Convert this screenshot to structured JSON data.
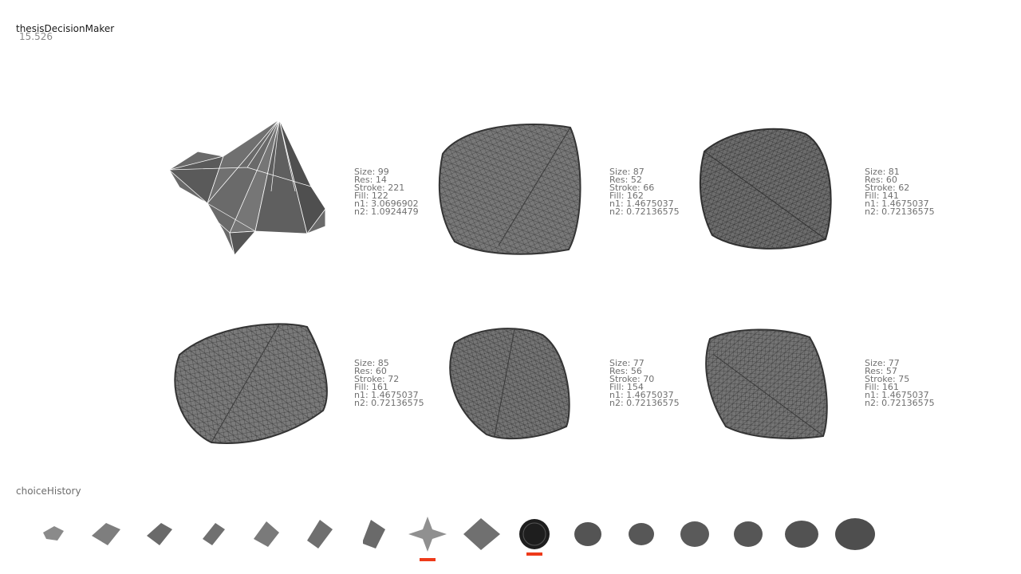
{
  "app": {
    "title": "thesisDecisionMaker",
    "timer": "15.526"
  },
  "candidates": [
    {
      "params": [
        "Size: 99",
        "Res: 14",
        "Stroke: 221",
        "Fill: 122",
        "n1: 3.0696902",
        "n2: 1.0924479"
      ]
    },
    {
      "params": [
        "Size: 87",
        "Res: 52",
        "Stroke: 66",
        "Fill: 162",
        "n1: 1.4675037",
        "n2: 0.72136575"
      ]
    },
    {
      "params": [
        "Size: 81",
        "Res: 60",
        "Stroke: 62",
        "Fill: 141",
        "n1: 1.4675037",
        "n2: 0.72136575"
      ]
    },
    {
      "params": [
        "Size: 85",
        "Res: 60",
        "Stroke: 72",
        "Fill: 161",
        "n1: 1.4675037",
        "n2: 0.72136575"
      ]
    },
    {
      "params": [
        "Size: 77",
        "Res: 56",
        "Stroke: 70",
        "Fill: 154",
        "n1: 1.4675037",
        "n2: 0.72136575"
      ]
    },
    {
      "params": [
        "Size: 77",
        "Res: 57",
        "Stroke: 75",
        "Fill: 161",
        "n1: 1.4675037",
        "n2: 0.72136575"
      ]
    }
  ],
  "history": {
    "label": "choiceHistory",
    "marker_color": "#ee3a1a"
  }
}
